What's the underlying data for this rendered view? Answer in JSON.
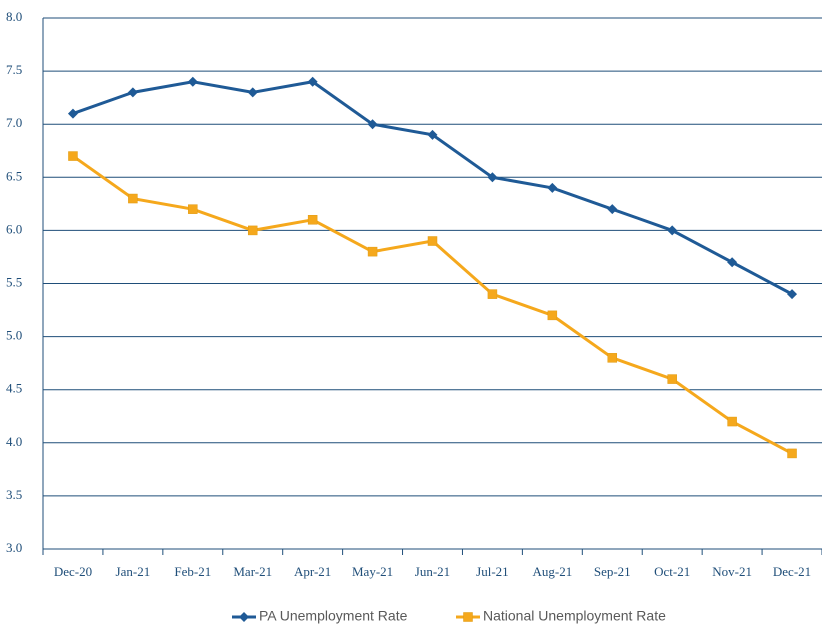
{
  "chart_data": {
    "type": "line",
    "categories": [
      "Dec-20",
      "Jan-21",
      "Feb-21",
      "Mar-21",
      "Apr-21",
      "May-21",
      "Jun-21",
      "Jul-21",
      "Aug-21",
      "Sep-21",
      "Oct-21",
      "Nov-21",
      "Dec-21"
    ],
    "series": [
      {
        "name": "PA Unemployment Rate",
        "color": "#1f5a96",
        "marker": "diamond",
        "values": [
          7.1,
          7.3,
          7.4,
          7.3,
          7.4,
          7.0,
          6.9,
          6.5,
          6.4,
          6.2,
          6.0,
          5.7,
          5.4
        ]
      },
      {
        "name": "National Unemployment Rate",
        "color": "#f5a81c",
        "marker": "square",
        "values": [
          6.7,
          6.3,
          6.2,
          6.0,
          6.1,
          5.8,
          5.9,
          5.4,
          5.2,
          4.8,
          4.6,
          4.2,
          3.9
        ]
      }
    ],
    "ylim": [
      3,
      8
    ],
    "yticks": [
      {
        "value": 3,
        "label": "3.0"
      },
      3.5,
      {
        "value": 4,
        "label": "4.0"
      },
      4.5,
      {
        "value": 5,
        "label": "5.0"
      },
      5.5,
      {
        "value": 6,
        "label": "6.0"
      },
      6.5,
      {
        "value": 7,
        "label": "7.0"
      },
      7.5,
      {
        "value": 8,
        "label": "8.0"
      }
    ],
    "grid": true,
    "legend": "bottom"
  }
}
